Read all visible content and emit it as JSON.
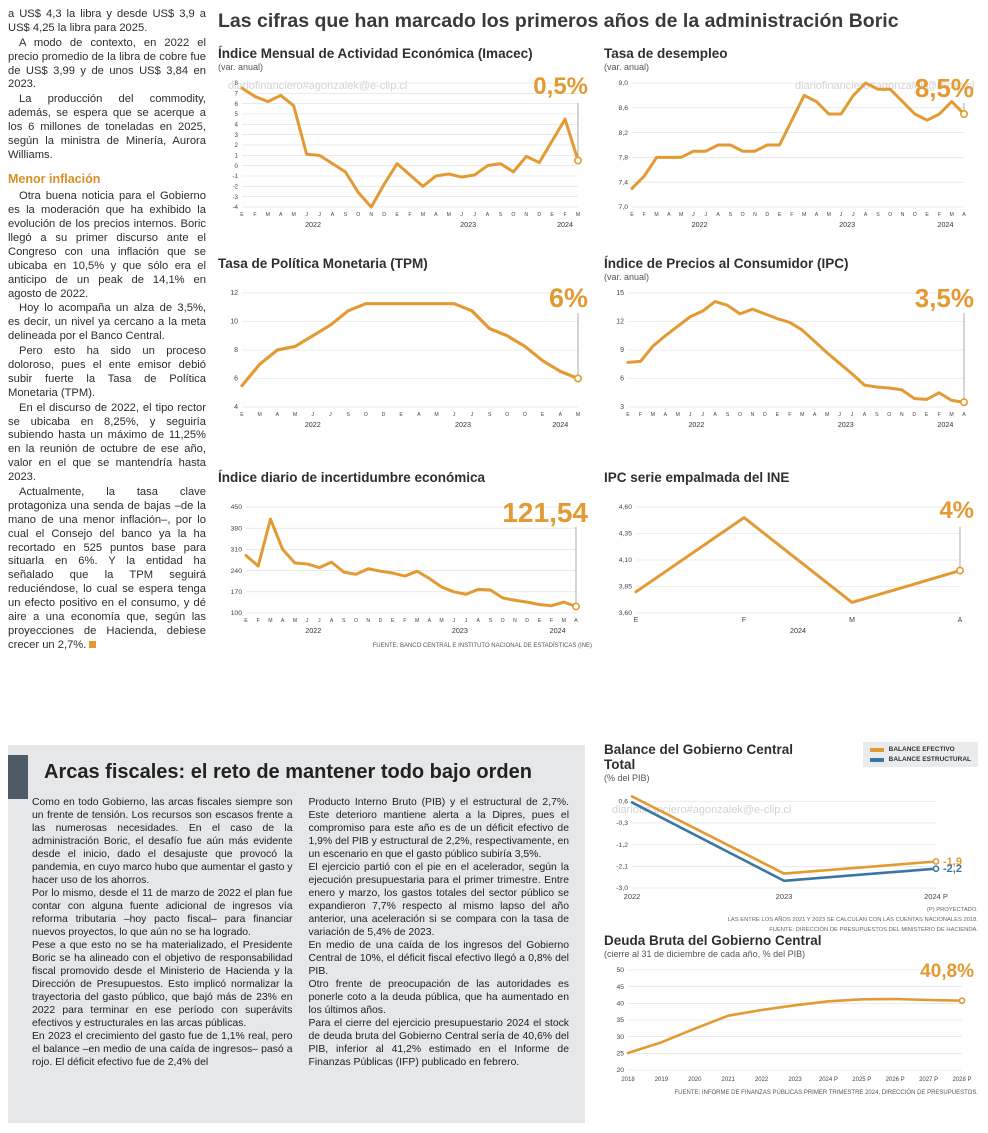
{
  "page": {
    "watermark": "diariofinanciero#agonzalek@e-clip.cl"
  },
  "colors": {
    "accent": "#E39A33",
    "blue": "#3D76A5"
  },
  "left_article": {
    "heading": "Menor inflación",
    "paragraphs": [
      "a US$ 4,3 la libra y desde US$ 3,9 a US$ 4,25 la libra para 2025.",
      "A modo de contexto, en 2022 el precio promedio de la libra de cobre fue de US$ 3,99 y de unos US$ 3,84 en 2023.",
      "La producción del commodity, además, se espera que se acerque a los 6 millones de toneladas en 2025, según la ministra de Minería, Aurora Williams.",
      "Otra buena noticia para el Gobierno es la moderación que ha exhibido la evolución de los precios internos. Boric llegó a su primer discurso ante el Congreso con una inflación que se ubicaba en 10,5% y que sólo era el anticipo de un peak de 14,1% en agosto de 2022.",
      "Hoy lo acompaña un alza de 3,5%, es decir, un nivel ya cercano a la meta delineada por el Banco Central.",
      "Pero esto ha sido un proceso doloroso, pues el ente emisor debió subir fuerte la Tasa de Política Monetaria (TPM).",
      "En el discurso de 2022, el tipo rector se ubicaba en 8,25%, y seguiría subiendo hasta un máximo de 11,25% en la reunión de octubre de ese año, valor en el que se mantendría hasta 2023.",
      "Actualmente, la tasa clave protagoniza una senda de bajas –de la mano de una menor inflación–, por lo cual el Consejo del banco ya la ha recortado en 525 puntos base para situarla en 6%. Y la entidad ha señalado que la TPM seguirá reduciéndose, lo cual se espera tenga un efecto positivo en el consumo, y dé aire a una economía que, según las proyecciones de Hacienda, debiese crecer un 2,7%."
    ]
  },
  "main": {
    "title": "Las cifras que han marcado los primeros años de la administración Boric",
    "source_note": "FUENTE: BANCO CENTRAL E INSTITUTO NACIONAL DE ESTADÍSTICAS (INE)"
  },
  "fiscal_section": {
    "title": "Arcas fiscales: el reto de mantener todo bajo orden",
    "col1": [
      "Como en todo Gobierno, las arcas fiscales siempre son un frente de tensión. Los recursos son escasos frente a las numerosas necesidades. En el caso de la administración Boric, el desafío fue aún más evidente desde el inicio, dado el desajuste que provocó la pandemia, en cuyo marco hubo que aumentar el gasto y hacer uso de los ahorros.",
      "Por lo mismo, desde el 11 de marzo de 2022 el plan fue contar con alguna fuente adicional de ingresos vía reforma tributaria –hoy pacto fiscal– para financiar nuevos proyectos, lo que aún no se ha logrado.",
      "Pese a que esto no se ha materializado, el Presidente Boric se ha alineado con el objetivo de responsabilidad fiscal promovido desde el Ministerio de Hacienda y la Dirección de Presupuestos. Esto implicó normalizar la trayectoria del gasto público, que bajó más de 23% en 2022 para terminar en ese período con superávits efectivos y estructurales en las arcas públicas.",
      "En 2023 el crecimiento del gasto fue de 1,1% real, pero el balance –en medio de una caída de ingresos– pasó a rojo. El déficit efectivo fue de 2,4% del"
    ],
    "col2": [
      "Producto Interno Bruto (PIB) y el estructural de 2,7%. Este deterioro mantiene alerta a la Dipres, pues el compromiso para este año es de un déficit efectivo de 1,9% del PIB y estructural de 2,2%, respectivamente, en un escenario en que el gasto público subiría 3,5%.",
      "El ejercicio partió con el pie en el acelerador, según la ejecución presupuestaria para el primer trimestre. Entre enero y marzo, los gastos totales del sector público se expandieron 7,7% respecto al mismo lapso del año anterior, una aceleración si se compara con la tasa de variación de 5,4% de 2023.",
      "En medio de una caída de los ingresos del Gobierno Central de 10%, el déficit fiscal efectivo llegó a 0,8% del PIB.",
      "Otro frente de preocupación de las autoridades es ponerle coto a la deuda pública, que ha aumentado en los últimos años.",
      "Para el cierre del ejercicio presupuestario 2024 el stock de deuda bruta del Gobierno Central sería de 40,6% del PIB, inferior al 41,2% estimado en el Informe de Finanzas Públicas (IFP) publicado en febrero."
    ],
    "balance_notes": [
      "(P) PROYECTADO.",
      "LAS ENTRE LOS AÑOS 2021 Y 2023 SE CALCULAN CON LAS CUENTAS NACIONALES 2018.",
      "FUENTE: DIRECCIÓN DE PRESUPUESTOS DEL MINISTERIO DE HACIENDA."
    ],
    "deuda_source": "FUENTE: INFORME DE FINANZAS PÚBLICAS PRIMER TRIMESTRE 2024, DIRECCIÓN DE PRESUPUESTOS."
  },
  "chart_data": [
    {
      "id": "imacec",
      "type": "line",
      "title": "Índice Mensual de Actividad Económica (Imacec)",
      "subtitle": "(var. anual)",
      "highlight": "0,5%",
      "highlight_size": 24,
      "categories": [
        "E",
        "F",
        "M",
        "A",
        "M",
        "J",
        "J",
        "A",
        "S",
        "O",
        "N",
        "D",
        "E",
        "F",
        "M",
        "A",
        "M",
        "J",
        "J",
        "A",
        "S",
        "O",
        "N",
        "D",
        "E",
        "F",
        "M"
      ],
      "year_groups": [
        {
          "label": "2022",
          "from": 0,
          "to": 11
        },
        {
          "label": "2023",
          "from": 12,
          "to": 23
        },
        {
          "label": "2024",
          "from": 24,
          "to": 26
        }
      ],
      "series": [
        {
          "name": "Imacec",
          "color": "#E39A33",
          "values": [
            7.5,
            6.7,
            6.2,
            6.8,
            5.8,
            1.1,
            1.0,
            0.2,
            -0.6,
            -2.6,
            -4.0,
            -1.8,
            0.2,
            -0.9,
            -2.0,
            -1.0,
            -0.8,
            -1.1,
            -0.9,
            0.0,
            0.2,
            -0.6,
            0.9,
            0.3,
            2.4,
            4.5,
            0.5
          ]
        }
      ],
      "yticks": [
        8,
        7,
        6,
        5,
        4,
        3,
        2,
        1,
        0,
        -1,
        -2,
        -3,
        -4
      ],
      "ytick_labels": [
        "8",
        "7",
        "6",
        "5",
        "4",
        "3",
        "2",
        "1",
        "0",
        "-1",
        "-2",
        "-3",
        "-4"
      ],
      "ylim": [
        -4,
        8
      ],
      "ytick_size": 6.2,
      "mleft": 24,
      "mright": 14,
      "stroke": 3,
      "annotation_line": true
    },
    {
      "id": "desempleo",
      "type": "line",
      "title": "Tasa de desempleo",
      "subtitle": "(var. anual)",
      "highlight": "8,5%",
      "highlight_size": 26,
      "categories": [
        "E",
        "F",
        "M",
        "A",
        "M",
        "J",
        "J",
        "A",
        "S",
        "O",
        "N",
        "D",
        "E",
        "F",
        "M",
        "A",
        "M",
        "J",
        "J",
        "A",
        "S",
        "O",
        "N",
        "D",
        "E",
        "F",
        "M",
        "A"
      ],
      "year_groups": [
        {
          "label": "2022",
          "from": 0,
          "to": 11
        },
        {
          "label": "2023",
          "from": 12,
          "to": 23
        },
        {
          "label": "2024",
          "from": 24,
          "to": 27
        }
      ],
      "series": [
        {
          "name": "Tasa de desempleo",
          "color": "#E39A33",
          "values": [
            7.3,
            7.5,
            7.8,
            7.8,
            7.8,
            7.9,
            7.9,
            8.0,
            8.0,
            7.9,
            7.9,
            8.0,
            8.0,
            8.4,
            8.8,
            8.7,
            8.5,
            8.5,
            8.8,
            9.0,
            8.9,
            8.9,
            8.7,
            8.5,
            8.4,
            8.5,
            8.7,
            8.5
          ]
        }
      ],
      "yticks": [
        9.0,
        8.6,
        8.2,
        7.8,
        7.4,
        7.0
      ],
      "ytick_labels": [
        "9,0",
        "8,6",
        "8,2",
        "7,8",
        "7,4",
        "7,0"
      ],
      "ylim": [
        7.0,
        9.0
      ],
      "ytick_size": 6.8,
      "mleft": 28,
      "mright": 14,
      "stroke": 3,
      "annotation_line": true
    },
    {
      "id": "tpm",
      "type": "line",
      "title": "Tasa de Política Monetaria (TPM)",
      "subtitle": "",
      "highlight": "6%",
      "highlight_size": 27,
      "categories": [
        "E",
        "M",
        "A",
        "M",
        "J",
        "J",
        "S",
        "O",
        "D",
        "E",
        "A",
        "M",
        "J",
        "J",
        "S",
        "O",
        "D",
        "E",
        "A",
        "M"
      ],
      "year_groups": [
        {
          "label": "2022",
          "from": 0,
          "to": 8
        },
        {
          "label": "2023",
          "from": 9,
          "to": 16
        },
        {
          "label": "2024",
          "from": 17,
          "to": 19
        }
      ],
      "series": [
        {
          "name": "TPM",
          "color": "#E39A33",
          "values": [
            5.5,
            7.0,
            8.0,
            8.25,
            9.0,
            9.75,
            10.75,
            11.25,
            11.25,
            11.25,
            11.25,
            11.25,
            11.25,
            10.75,
            9.5,
            9.0,
            8.25,
            7.25,
            6.5,
            6.0
          ]
        }
      ],
      "yticks": [
        12,
        10,
        8,
        6,
        4
      ],
      "ytick_labels": [
        "12",
        "10",
        "8",
        "6",
        "4"
      ],
      "ylim": [
        4,
        12
      ],
      "ytick_size": 7,
      "mleft": 24,
      "mright": 14,
      "stroke": 3.2,
      "annotation_line": true
    },
    {
      "id": "ipc",
      "type": "line",
      "title": "Índice de Precios al Consumidor (IPC)",
      "subtitle": "(var. anual)",
      "highlight": "3,5%",
      "highlight_size": 26,
      "categories": [
        "E",
        "F",
        "M",
        "A",
        "M",
        "J",
        "J",
        "A",
        "S",
        "O",
        "N",
        "D",
        "E",
        "F",
        "M",
        "A",
        "M",
        "J",
        "J",
        "A",
        "S",
        "O",
        "N",
        "D",
        "E",
        "F",
        "M",
        "A"
      ],
      "year_groups": [
        {
          "label": "2022",
          "from": 0,
          "to": 11
        },
        {
          "label": "2023",
          "from": 12,
          "to": 23
        },
        {
          "label": "2024",
          "from": 24,
          "to": 27
        }
      ],
      "series": [
        {
          "name": "IPC",
          "color": "#E39A33",
          "values": [
            7.7,
            7.8,
            9.4,
            10.5,
            11.5,
            12.5,
            13.1,
            14.1,
            13.7,
            12.8,
            13.3,
            12.8,
            12.3,
            11.9,
            11.1,
            9.9,
            8.7,
            7.6,
            6.5,
            5.3,
            5.1,
            5.0,
            4.8,
            3.9,
            3.8,
            4.5,
            3.7,
            3.5
          ]
        }
      ],
      "yticks": [
        15,
        12,
        9,
        6,
        3
      ],
      "ytick_labels": [
        "15",
        "12",
        "9",
        "6",
        "3"
      ],
      "ylim": [
        3,
        15
      ],
      "ytick_size": 7,
      "mleft": 24,
      "mright": 14,
      "stroke": 3,
      "annotation_line": true
    },
    {
      "id": "incertidumbre",
      "type": "line",
      "title": "Índice diario de incertidumbre económica",
      "subtitle": "",
      "highlight": "121,54",
      "highlight_size": 28,
      "categories": [
        "E",
        "F",
        "M",
        "A",
        "M",
        "J",
        "J",
        "A",
        "S",
        "O",
        "N",
        "D",
        "E",
        "F",
        "M",
        "A",
        "M",
        "J",
        "J",
        "A",
        "S",
        "O",
        "N",
        "D",
        "E",
        "F",
        "M",
        "A"
      ],
      "year_groups": [
        {
          "label": "2022",
          "from": 0,
          "to": 11
        },
        {
          "label": "2023",
          "from": 12,
          "to": 23
        },
        {
          "label": "2024",
          "from": 24,
          "to": 27
        }
      ],
      "series": [
        {
          "name": "Incertidumbre económica",
          "color": "#E39A33",
          "values": [
            290,
            255,
            410,
            310,
            265,
            262,
            250,
            268,
            235,
            228,
            246,
            238,
            232,
            222,
            238,
            214,
            186,
            170,
            162,
            178,
            176,
            150,
            142,
            136,
            128,
            124,
            136,
            121.54
          ]
        }
      ],
      "yticks": [
        450,
        380,
        310,
        240,
        170,
        100
      ],
      "ytick_labels": [
        "450",
        "380",
        "310",
        "240",
        "170",
        "100"
      ],
      "ylim": [
        100,
        450
      ],
      "ytick_size": 6.8,
      "mleft": 28,
      "mright": 16,
      "stroke": 3,
      "annotation_line": true
    },
    {
      "id": "ipc-empalmada",
      "type": "line",
      "title": "IPC serie empalmada del INE",
      "subtitle": "",
      "highlight": "4%",
      "highlight_size": 24,
      "categories": [
        "E",
        "F",
        "M",
        "A"
      ],
      "year_groups": [
        {
          "label": "2024",
          "from": 0,
          "to": 3
        }
      ],
      "series": [
        {
          "name": "IPC serie empalmada",
          "color": "#E39A33",
          "values": [
            3.8,
            4.5,
            3.7,
            4.0
          ]
        }
      ],
      "yticks": [
        4.6,
        4.35,
        4.1,
        3.85,
        3.6
      ],
      "ytick_labels": [
        "4,60",
        "4,35",
        "4,10",
        "3,85",
        "3,60"
      ],
      "ylim": [
        3.6,
        4.6
      ],
      "ytick_size": 6.8,
      "xtick_size": 7,
      "mleft": 32,
      "mright": 18,
      "stroke": 3,
      "annotation_line": true
    },
    {
      "id": "balance",
      "type": "line",
      "title": "Balance del Gobierno Central Total",
      "subtitle": "(% del PIB)",
      "categories": [
        "2022",
        "2023",
        "2024 P"
      ],
      "legend": [
        {
          "label": "BALANCE EFECTIVO",
          "color": "#E39A33"
        },
        {
          "label": "BALANCE ESTRUCTURAL",
          "color": "#3D76A5"
        }
      ],
      "series": [
        {
          "name": "Balance efectivo",
          "color": "#E39A33",
          "values": [
            0.8,
            -2.4,
            -1.9
          ]
        },
        {
          "name": "Balance estructural",
          "color": "#3D76A5",
          "values": [
            0.55,
            -2.7,
            -2.2
          ]
        }
      ],
      "end_labels": [
        {
          "text": "-1,9",
          "color": "#E39A33"
        },
        {
          "text": "-2,2",
          "color": "#3D76A5"
        }
      ],
      "yticks": [
        0.6,
        -0.3,
        -1.2,
        -2.1,
        -3.0
      ],
      "ytick_labels": [
        "0,6",
        "-0,3",
        "-1,2",
        "-2,1",
        "-3,0"
      ],
      "ylim": [
        -3.0,
        0.9
      ],
      "ytick_size": 6.8,
      "xtick_size": 7.5,
      "mleft": 28,
      "mright": 42,
      "stroke": 2.6,
      "annotation_line": false
    },
    {
      "id": "deuda",
      "type": "line",
      "title": "Deuda Bruta del Gobierno Central",
      "subtitle": "(cierre al 31 de diciembre de cada año, % del PIB)",
      "highlight": "40,8%",
      "highlight_size": 19,
      "categories": [
        "2018",
        "2019",
        "2020",
        "2021",
        "2022",
        "2023",
        "2024 P",
        "2025 P",
        "2026 P",
        "2027 P",
        "2028 P"
      ],
      "series": [
        {
          "name": "Deuda bruta",
          "color": "#E39A33",
          "values": [
            25.1,
            28.3,
            32.4,
            36.3,
            38.0,
            39.4,
            40.6,
            41.2,
            41.3,
            41.0,
            40.8
          ]
        }
      ],
      "yticks": [
        50,
        45,
        40,
        35,
        30,
        25,
        20
      ],
      "ytick_labels": [
        "50",
        "45",
        "40",
        "35",
        "30",
        "25",
        "20"
      ],
      "ylim": [
        20,
        50
      ],
      "ytick_size": 6.8,
      "xtick_size": 6,
      "mleft": 24,
      "mright": 16,
      "stroke": 2.6,
      "annotation_line": false
    }
  ]
}
